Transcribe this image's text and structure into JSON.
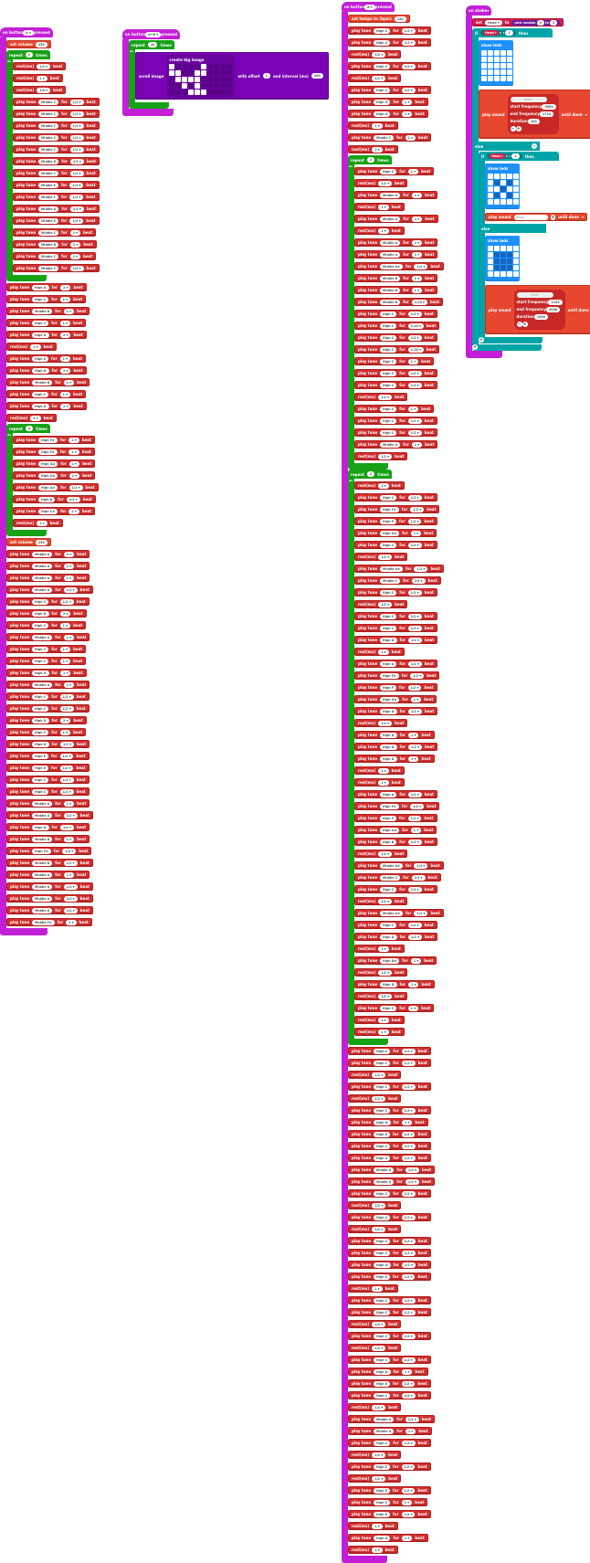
{
  "colors": {
    "event": "#c21fd6",
    "loop": "#16a116",
    "music": "#d12f2f",
    "radio": "#e3008c",
    "basic": "#1e90ff",
    "logic": "#00a4a6",
    "led": "#7a04b5",
    "variable": "#d4204c"
  },
  "icons": {
    "dropdown": "chevron-down-icon",
    "add": "plus-icon",
    "remove": "minus-icon"
  },
  "labels": {
    "on_button": "on button",
    "pressed": "pressed",
    "set_volume": "set volume",
    "repeat": "repeat",
    "times": "times",
    "do": "do",
    "rest": "rest(ms)",
    "play_tone": "play tone",
    "for": "for",
    "beat": "beat",
    "set_tempo": "set tempo to (bpm)",
    "scroll_image": "scroll image",
    "create_big_image": "create big image",
    "with_offset": "with offset",
    "and_interval": "and interval (ms)",
    "on_shake": "on shake",
    "set": "set",
    "to": "to",
    "pick_random": "pick random",
    "if": "if",
    "then": "then",
    "else": "else",
    "show_leds": "show leds",
    "play_sound": "play sound",
    "until_done": "until done",
    "start_frequency": "start frequency",
    "end_frequency": "end frequency",
    "duration": "duration"
  },
  "eventA": {
    "button": "A",
    "volume": "255",
    "repeat1": "2",
    "repeat2": "2",
    "volume2": "255",
    "loopNotes": [
      [
        "rest",
        "1/2"
      ],
      [
        "rest",
        "1"
      ],
      [
        "rest",
        "1/4"
      ],
      [
        "Middle C",
        "1/2"
      ],
      [
        "Middle C",
        "1/2"
      ],
      [
        "Middle C",
        "1/2"
      ],
      [
        "Middle C",
        "1/2"
      ],
      [
        "Middle C",
        "1/2"
      ],
      [
        "Middle D",
        "1/2"
      ],
      [
        "Middle C",
        "1/2"
      ],
      [
        "Middle E",
        "1/2"
      ],
      [
        "Middle F",
        "1/2"
      ],
      [
        "Middle G",
        "1/2"
      ],
      [
        "Middle E",
        "1/2"
      ],
      [
        "Middle C",
        "1"
      ],
      [
        "Middle D",
        "1"
      ],
      [
        "Middle C",
        "1"
      ],
      [
        "Middle C",
        "1/4"
      ]
    ],
    "notesAfterLoop1": [
      [
        "High D",
        "2"
      ],
      [
        "High C",
        "2"
      ],
      [
        "Middle B",
        "1"
      ],
      [
        "High C",
        "1"
      ],
      [
        "High D",
        "2"
      ],
      [
        "rest",
        "1"
      ],
      [
        "High E",
        "1"
      ],
      [
        "High D",
        "2"
      ],
      [
        "Middle B",
        "1"
      ],
      [
        "High C",
        "1"
      ],
      [
        "High D",
        "2"
      ],
      [
        "rest",
        "1"
      ]
    ],
    "loop2Notes": [
      [
        "High F#",
        "1"
      ],
      [
        "High F#",
        "1"
      ],
      [
        "High G#",
        "1"
      ],
      [
        "High G#",
        "1"
      ],
      [
        "High A#",
        "1/2"
      ],
      [
        "High B",
        "1/2"
      ],
      [
        "High C#",
        "2"
      ],
      [
        "rest",
        "1"
      ]
    ],
    "notesEnd": [
      [
        "Middle A",
        "1"
      ],
      [
        "Middle A",
        "1"
      ],
      [
        "Middle A",
        "1"
      ],
      [
        "Middle A",
        "1/2"
      ],
      [
        "High C",
        "1/2"
      ],
      [
        "High D",
        "2"
      ],
      [
        "High C",
        "1"
      ],
      [
        "Middle A",
        "1"
      ],
      [
        "High C",
        "1"
      ],
      [
        "High C",
        "1"
      ],
      [
        "High D",
        "1"
      ],
      [
        "Middle A",
        "1"
      ],
      [
        "High C",
        "1/2"
      ],
      [
        "High C",
        "1/2"
      ],
      [
        "High D",
        "2"
      ],
      [
        "High C",
        "1"
      ],
      [
        "High D",
        "1/2"
      ],
      [
        "High E",
        "1/2"
      ],
      [
        "High E",
        "1/2"
      ],
      [
        "High C",
        "1/2"
      ],
      [
        "High C",
        "1/2"
      ],
      [
        "Middle A",
        "1"
      ],
      [
        "Middle A",
        "1/2"
      ],
      [
        "High D",
        "1/2"
      ],
      [
        "Middle B",
        "1"
      ],
      [
        "High F#",
        "1/2"
      ],
      [
        "Middle B",
        "1/2"
      ],
      [
        "Middle A",
        "1"
      ],
      [
        "Middle A",
        "1/2"
      ],
      [
        "Middle A",
        "1/2"
      ],
      [
        "Middle A",
        "1/2"
      ],
      [
        "Middle F#",
        "1"
      ]
    ]
  },
  "eventAB": {
    "button": "A+B",
    "repeat": "10",
    "offset": "1",
    "interval": "200"
  },
  "eventB": {
    "button": "B",
    "tempo": "120",
    "topNotes": [
      [
        "High C",
        "1/2"
      ],
      [
        "High C",
        "1/2"
      ],
      [
        "rest",
        "1/2"
      ],
      [
        "High C",
        "1/2"
      ],
      [
        "rest",
        "1/2"
      ],
      [
        "High C",
        "1/2"
      ],
      [
        "High G",
        "1"
      ],
      [
        "High G",
        "1"
      ],
      [
        "rest",
        "1"
      ],
      [
        "Middle C",
        "1"
      ],
      [
        "rest",
        "1"
      ]
    ],
    "repeat1": "2",
    "repeat1Notes": [
      [
        "High C",
        "1"
      ],
      [
        "rest",
        "1/2"
      ],
      [
        "Middle A",
        "1"
      ],
      [
        "rest",
        "1"
      ],
      [
        "Middle G",
        "1"
      ],
      [
        "rest",
        "1"
      ],
      [
        "Middle A",
        "1"
      ],
      [
        "Middle A",
        "1"
      ],
      [
        "Middle A#",
        "1/2"
      ],
      [
        "Middle B",
        "1"
      ],
      [
        "Middle B",
        "1"
      ],
      [
        "Middle B",
        "1/16"
      ],
      [
        "High C",
        "1/2"
      ],
      [
        "High C",
        "1/16"
      ],
      [
        "High C",
        "1/2"
      ],
      [
        "High C",
        "1/16"
      ],
      [
        "High C",
        "1"
      ],
      [
        "High C",
        "1/2"
      ],
      [
        "High C",
        "1/2"
      ],
      [
        "rest",
        "1/2"
      ],
      [
        "High C",
        "1"
      ],
      [
        "High C",
        "1/2"
      ],
      [
        "High C",
        "1/2"
      ],
      [
        "Middle A",
        "1"
      ],
      [
        "rest",
        "1/2"
      ]
    ],
    "repeat2": "2",
    "repeat2Notes": [
      [
        "rest",
        "1"
      ],
      [
        "High C",
        "1/2"
      ],
      [
        "High F#",
        "1/2"
      ],
      [
        "High F",
        "1/2"
      ],
      [
        "High G#",
        "1"
      ],
      [
        "High C",
        "1/2"
      ],
      [
        "rest",
        "1/2"
      ],
      [
        "Middle A#",
        "1/2"
      ],
      [
        "Middle C",
        "1/2"
      ],
      [
        "High C",
        "1/2"
      ],
      [
        "rest",
        "1/2"
      ],
      [
        "High C",
        "1/2"
      ],
      [
        "High C",
        "1/2"
      ],
      [
        "High D",
        "1/2"
      ],
      [
        "rest",
        "1"
      ],
      [
        "High A",
        "1/2"
      ],
      [
        "High F#",
        "1/2"
      ],
      [
        "High F",
        "1/2"
      ],
      [
        "High G#",
        "1"
      ],
      [
        "High D",
        "1/2"
      ],
      [
        "rest",
        "1/2"
      ],
      [
        "High D",
        "1"
      ],
      [
        "High D",
        "1/2"
      ],
      [
        "High D",
        "1"
      ],
      [
        "rest",
        "1"
      ],
      [
        "rest",
        "1"
      ],
      [
        "High A",
        "1/2"
      ],
      [
        "High F#",
        "1/2"
      ],
      [
        "High F",
        "1/2"
      ],
      [
        "High G#",
        "1"
      ],
      [
        "High B",
        "1/2"
      ],
      [
        "rest",
        "1/2"
      ],
      [
        "Middle A#",
        "1/2"
      ],
      [
        "Middle C",
        "1/2"
      ],
      [
        "High C",
        "1/2"
      ],
      [
        "rest",
        "1/2"
      ],
      [
        "Middle A#",
        "1/2"
      ],
      [
        "High C",
        "1/2"
      ],
      [
        "High D",
        "1/2"
      ],
      [
        "rest",
        "1"
      ],
      [
        "High D#",
        "1"
      ],
      [
        "rest",
        "1/2"
      ],
      [
        "High D",
        "1"
      ],
      [
        "rest",
        "1/2"
      ],
      [
        "High C",
        "1"
      ],
      [
        "rest",
        "1"
      ],
      [
        "rest",
        "1"
      ]
    ],
    "bottomNotes": [
      [
        "High C",
        "1/2"
      ],
      [
        "High C",
        "1/2"
      ],
      [
        "rest",
        "1/2"
      ],
      [
        "High C",
        "1/2"
      ],
      [
        "rest",
        "1/2"
      ],
      [
        "High C",
        "1/2"
      ],
      [
        "High D",
        "1"
      ],
      [
        "High E",
        "1/2"
      ],
      [
        "High C",
        "1/2"
      ],
      [
        "High A",
        "1/2"
      ],
      [
        "Middle G",
        "1/2"
      ],
      [
        "Middle G",
        "1/2"
      ],
      [
        "High C",
        "1/2"
      ],
      [
        "rest",
        "1/2"
      ],
      [
        "High C",
        "1/2"
      ],
      [
        "rest",
        "1/2"
      ],
      [
        "High C",
        "1/2"
      ],
      [
        "High C",
        "1/2"
      ],
      [
        "High D",
        "1/2"
      ],
      [
        "High E",
        "1/2"
      ],
      [
        "rest",
        "1"
      ],
      [
        "High C",
        "1/2"
      ],
      [
        "High C",
        "1/2"
      ],
      [
        "rest",
        "1/2"
      ],
      [
        "High C",
        "1/2"
      ],
      [
        "rest",
        "1/2"
      ],
      [
        "High C",
        "1/2"
      ],
      [
        "High D",
        "1"
      ],
      [
        "High E",
        "1/2"
      ],
      [
        "High C",
        "1/2"
      ],
      [
        "rest",
        "1/2"
      ],
      [
        "Middle A",
        "1/2"
      ],
      [
        "Middle G",
        "1"
      ],
      [
        "High C",
        "1/2"
      ],
      [
        "rest",
        "1/2"
      ],
      [
        "High E",
        "1/2"
      ],
      [
        "rest",
        "1/2"
      ],
      [
        "High E",
        "1/2"
      ],
      [
        "High C",
        "1"
      ],
      [
        "High E",
        "1/2"
      ],
      [
        "rest",
        "1"
      ],
      [
        "High G",
        "1"
      ],
      [
        "rest",
        "1"
      ]
    ]
  },
  "shake": {
    "var": "Head",
    "random_from": "0",
    "random_to": "2",
    "cond1": "1",
    "cond2": "2",
    "sound1": {
      "start": "5000",
      "end": "1714",
      "dur": "100"
    },
    "sound3": {
      "start": "1155",
      "end": "2098",
      "dur": "1000"
    }
  }
}
